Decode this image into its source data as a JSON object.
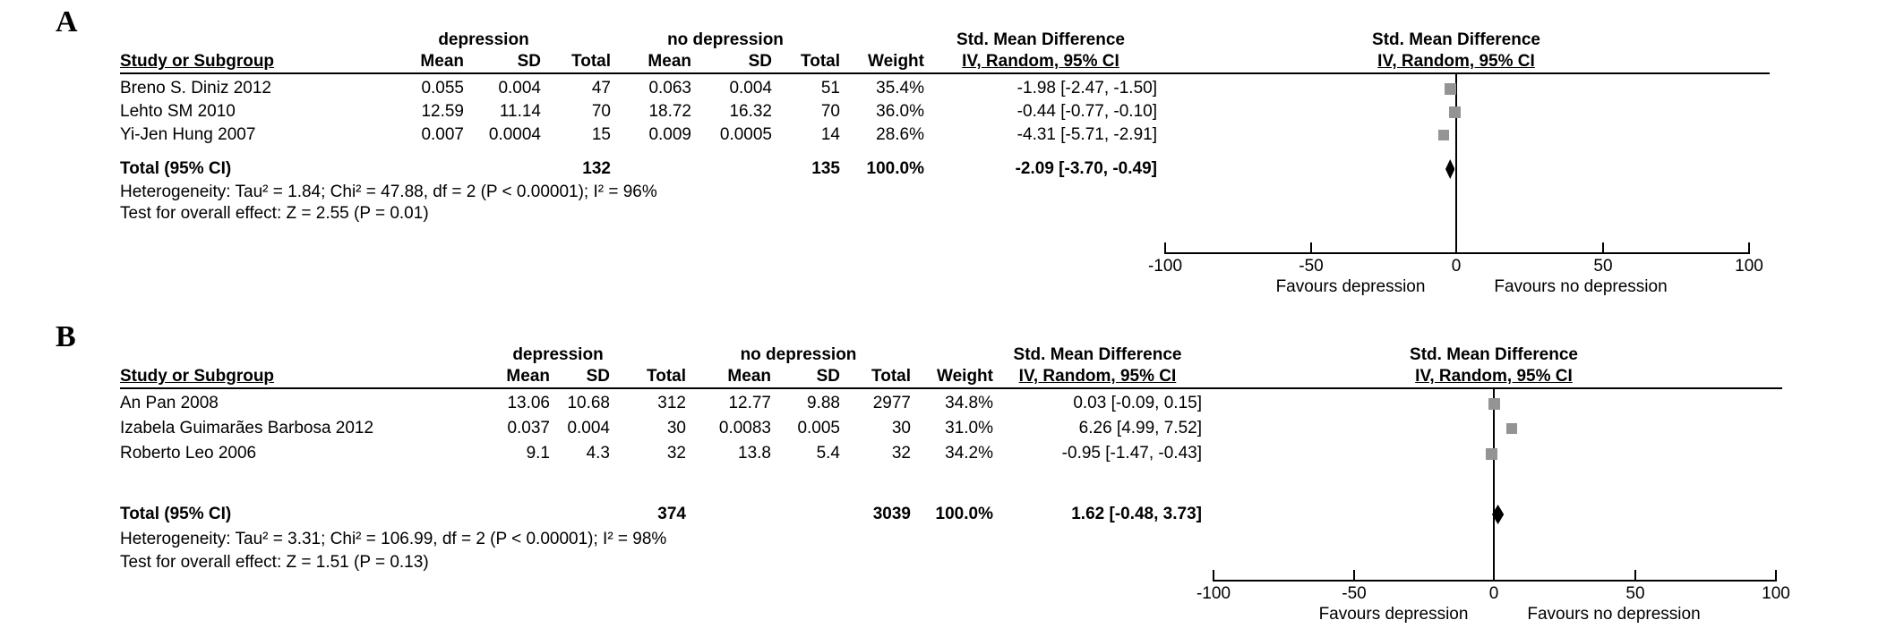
{
  "panels": [
    {
      "label": "A",
      "group1": "depression",
      "group2": "no depression",
      "effect": "Std. Mean Difference",
      "method": "IV, Random, 95% CI",
      "columns": {
        "study": "Study or Subgroup",
        "mean": "Mean",
        "sd": "SD",
        "total": "Total",
        "weight": "Weight"
      },
      "studies": [
        {
          "name": "Breno S. Diniz 2012",
          "mean1": "0.055",
          "sd1": "0.004",
          "n1": "47",
          "mean2": "0.063",
          "sd2": "0.004",
          "n2": "51",
          "weight": "35.4%",
          "weight_pct": 35.4,
          "ci": "-1.98 [-2.47, -1.50]",
          "est": -1.98
        },
        {
          "name": "Lehto SM 2010",
          "mean1": "12.59",
          "sd1": "11.14",
          "n1": "70",
          "mean2": "18.72",
          "sd2": "16.32",
          "n2": "70",
          "weight": "36.0%",
          "weight_pct": 36.0,
          "ci": "-0.44 [-0.77, -0.10]",
          "est": -0.44
        },
        {
          "name": "Yi-Jen Hung 2007",
          "mean1": "0.007",
          "sd1": "0.0004",
          "n1": "15",
          "mean2": "0.009",
          "sd2": "0.0005",
          "n2": "14",
          "weight": "28.6%",
          "weight_pct": 28.6,
          "ci": "-4.31 [-5.71, -2.91]",
          "est": -4.31
        }
      ],
      "total": {
        "label": "Total (95% CI)",
        "n1": "132",
        "n2": "135",
        "weight": "100.0%",
        "ci": "-2.09 [-3.70, -0.49]",
        "est": -2.09,
        "lo": -3.7,
        "hi": -0.49
      },
      "heterogeneity": "Heterogeneity: Tau² = 1.84; Chi² = 47.88, df = 2 (P < 0.00001); I² = 96%",
      "overall_effect": "Test for overall effect: Z = 2.55 (P = 0.01)",
      "axis": {
        "ticks": [
          "-100",
          "-50",
          "0",
          "50",
          "100"
        ]
      },
      "favours_left": "Favours depression",
      "favours_right": "Favours no depression"
    },
    {
      "label": "B",
      "group1": "depression",
      "group2": "no depression",
      "effect": "Std. Mean Difference",
      "method": "IV, Random, 95% CI",
      "columns": {
        "study": "Study or Subgroup",
        "mean": "Mean",
        "sd": "SD",
        "total": "Total",
        "weight": "Weight"
      },
      "studies": [
        {
          "name": "An Pan 2008",
          "mean1": "13.06",
          "sd1": "10.68",
          "n1": "312",
          "mean2": "12.77",
          "sd2": "9.88",
          "n2": "2977",
          "weight": "34.8%",
          "weight_pct": 34.8,
          "ci": "0.03 [-0.09, 0.15]",
          "est": 0.03
        },
        {
          "name": "Izabela Guimarães Barbosa 2012",
          "mean1": "0.037",
          "sd1": "0.004",
          "n1": "30",
          "mean2": "0.0083",
          "sd2": "0.005",
          "n2": "30",
          "weight": "31.0%",
          "weight_pct": 31.0,
          "ci": "6.26 [4.99, 7.52]",
          "est": 6.26
        },
        {
          "name": "Roberto Leo 2006",
          "mean1": "9.1",
          "sd1": "4.3",
          "n1": "32",
          "mean2": "13.8",
          "sd2": "5.4",
          "n2": "32",
          "weight": "34.2%",
          "weight_pct": 34.2,
          "ci": "-0.95 [-1.47, -0.43]",
          "est": -0.95
        }
      ],
      "total": {
        "label": "Total (95% CI)",
        "n1": "374",
        "n2": "3039",
        "weight": "100.0%",
        "ci": "1.62 [-0.48, 3.73]",
        "est": 1.62,
        "lo": -0.48,
        "hi": 3.73
      },
      "heterogeneity": "Heterogeneity: Tau² = 3.31; Chi² = 106.99, df = 2 (P < 0.00001); I² = 98%",
      "overall_effect": "Test for overall effect: Z = 1.51 (P = 0.13)",
      "axis": {
        "ticks": [
          "-100",
          "-50",
          "0",
          "50",
          "100"
        ]
      },
      "favours_left": "Favours depression",
      "favours_right": "Favours no depression"
    }
  ],
  "chart_data": [
    {
      "type": "table",
      "panel": "A",
      "title": "Std. Mean Difference  IV, Random, 95% CI",
      "x_axis": {
        "range": [
          -100,
          100
        ],
        "ticks": [
          -100,
          -50,
          0,
          50,
          100
        ]
      },
      "favours": [
        "Favours depression",
        "Favours no depression"
      ],
      "studies": [
        {
          "name": "Breno S. Diniz 2012",
          "smd": -1.98,
          "ci": [
            -2.47,
            -1.5
          ],
          "weight_pct": 35.4,
          "n_dep": 47,
          "n_nodep": 51
        },
        {
          "name": "Lehto SM 2010",
          "smd": -0.44,
          "ci": [
            -0.77,
            -0.1
          ],
          "weight_pct": 36.0,
          "n_dep": 70,
          "n_nodep": 70
        },
        {
          "name": "Yi-Jen Hung 2007",
          "smd": -4.31,
          "ci": [
            -5.71,
            -2.91
          ],
          "weight_pct": 28.6,
          "n_dep": 15,
          "n_nodep": 14
        }
      ],
      "total": {
        "smd": -2.09,
        "ci": [
          -3.7,
          -0.49
        ],
        "n_dep": 132,
        "n_nodep": 135,
        "tau2": 1.84,
        "chi2": 47.88,
        "df": 2,
        "i2_pct": 96,
        "z": 2.55,
        "p": 0.01
      }
    },
    {
      "type": "table",
      "panel": "B",
      "title": "Std. Mean Difference  IV, Random, 95% CI",
      "x_axis": {
        "range": [
          -100,
          100
        ],
        "ticks": [
          -100,
          -50,
          0,
          50,
          100
        ]
      },
      "favours": [
        "Favours depression",
        "Favours no depression"
      ],
      "studies": [
        {
          "name": "An Pan 2008",
          "smd": 0.03,
          "ci": [
            -0.09,
            0.15
          ],
          "weight_pct": 34.8,
          "n_dep": 312,
          "n_nodep": 2977
        },
        {
          "name": "Izabela Guimarães Barbosa 2012",
          "smd": 6.26,
          "ci": [
            4.99,
            7.52
          ],
          "weight_pct": 31.0,
          "n_dep": 30,
          "n_nodep": 30
        },
        {
          "name": "Roberto Leo 2006",
          "smd": -0.95,
          "ci": [
            -1.47,
            -0.43
          ],
          "weight_pct": 34.2,
          "n_dep": 32,
          "n_nodep": 32
        }
      ],
      "total": {
        "smd": 1.62,
        "ci": [
          -0.48,
          3.73
        ],
        "n_dep": 374,
        "n_nodep": 3039,
        "tau2": 3.31,
        "chi2": 106.99,
        "df": 2,
        "i2_pct": 98,
        "z": 1.51,
        "p": 0.13
      }
    }
  ],
  "colors": {
    "square": "#949494",
    "diamond": "#000000",
    "line": "#000000",
    "text": "#000000"
  }
}
